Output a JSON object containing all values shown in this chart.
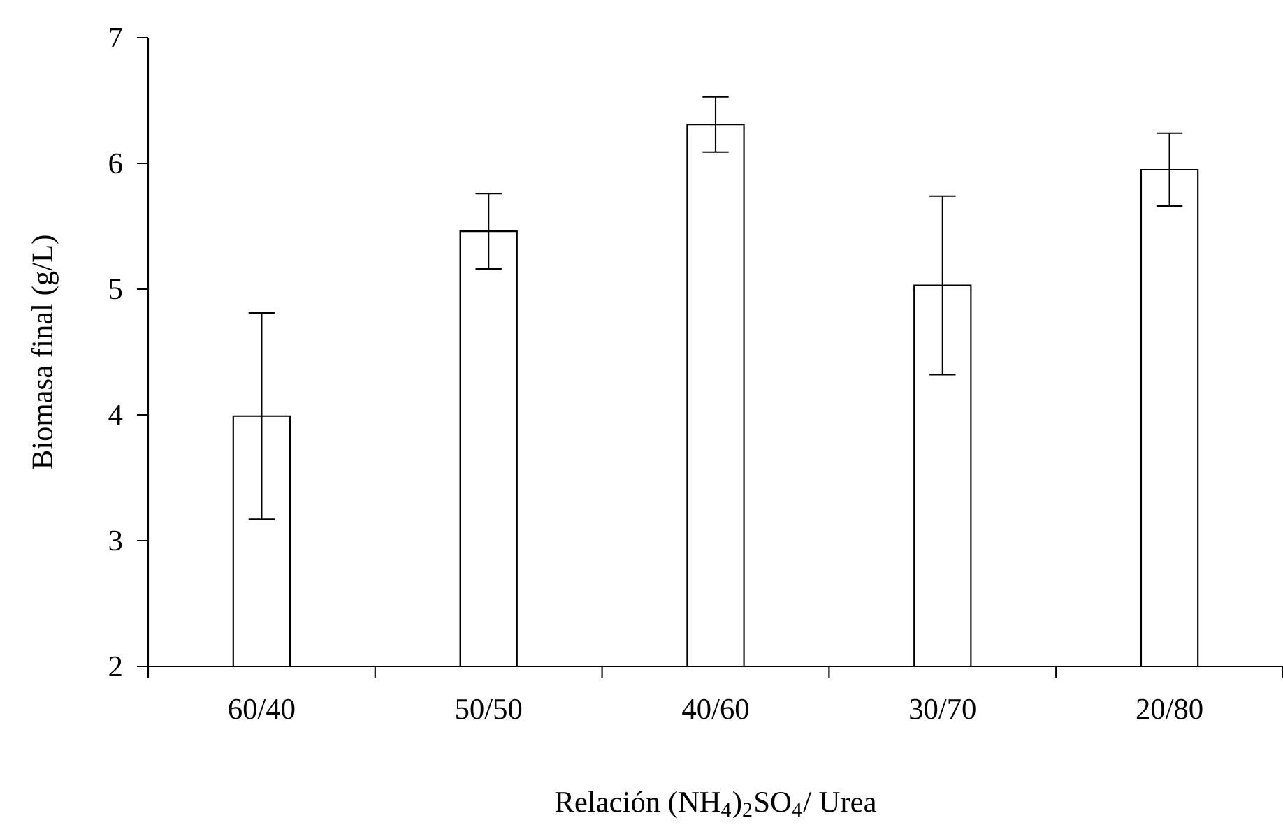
{
  "chart_data": {
    "type": "bar",
    "xlabel": "Relación (NH$_{4}$)$_{2}$SO$_{4}$/ Urea",
    "ylabel": "Biomasa final (g/L)",
    "categories": [
      "60/40",
      "50/50",
      "40/60",
      "30/70",
      "20/80"
    ],
    "values": [
      3.99,
      5.46,
      6.31,
      5.03,
      5.95
    ],
    "errors": [
      0.82,
      0.3,
      0.22,
      0.71,
      0.29
    ],
    "color": "#ffffff",
    "ylim": [
      2,
      7
    ],
    "yticks": [
      2,
      3,
      4,
      5,
      6,
      7
    ]
  }
}
